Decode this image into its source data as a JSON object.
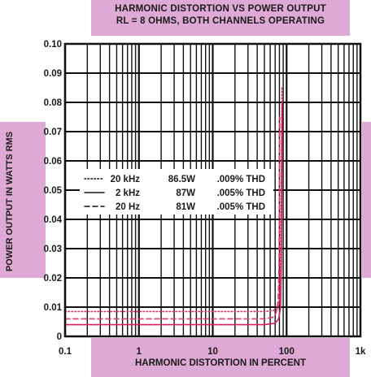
{
  "chart_data": {
    "type": "line",
    "title": "HARMONIC DISTORTION VS POWER OUTPUT",
    "subtitle": "RL = 8 OHMS, BOTH CHANNELS OPERATING",
    "xlabel": "HARMONIC DISTORTION IN PERCENT",
    "ylabel": "POWER OUTPUT IN WATTS RMS",
    "x_scale": "log",
    "xlim": [
      0.1,
      1000
    ],
    "ylim": [
      0,
      0.1
    ],
    "x_ticks": [
      "0.1",
      "1",
      "10",
      "100",
      "1k"
    ],
    "y_ticks": [
      "0",
      "0.01",
      "0.02",
      "0.03",
      "0.04",
      "0.05",
      "0.06",
      "0.07",
      "0.08",
      "0.09",
      "0.10"
    ],
    "grid": true,
    "legend_position": "center-left",
    "series": [
      {
        "name": "20 kHz",
        "legend": [
          "20 kHz",
          "86.5W",
          ".009% THD"
        ],
        "style": "dotted",
        "color": "#e0306a",
        "x": [
          0.1,
          20,
          50,
          65,
          75,
          80,
          83,
          85,
          86.5
        ],
        "y": [
          0.0085,
          0.0085,
          0.0085,
          0.0088,
          0.0095,
          0.012,
          0.025,
          0.055,
          0.085
        ]
      },
      {
        "name": "2 kHz",
        "legend": [
          "2 kHz",
          "87W",
          ".005% THD"
        ],
        "style": "solid",
        "color": "#d81e63",
        "x": [
          0.1,
          20,
          50,
          70,
          78,
          83,
          85,
          86,
          87
        ],
        "y": [
          0.004,
          0.004,
          0.004,
          0.0045,
          0.006,
          0.01,
          0.025,
          0.05,
          0.08
        ]
      },
      {
        "name": "20 Hz",
        "legend": [
          "20 Hz",
          "81W",
          ".005% THD"
        ],
        "style": "dashed",
        "color": "#e03a70",
        "x": [
          0.1,
          20,
          50,
          65,
          72,
          77,
          79,
          80,
          81
        ],
        "y": [
          0.006,
          0.006,
          0.006,
          0.0065,
          0.008,
          0.012,
          0.025,
          0.05,
          0.075
        ]
      }
    ]
  }
}
